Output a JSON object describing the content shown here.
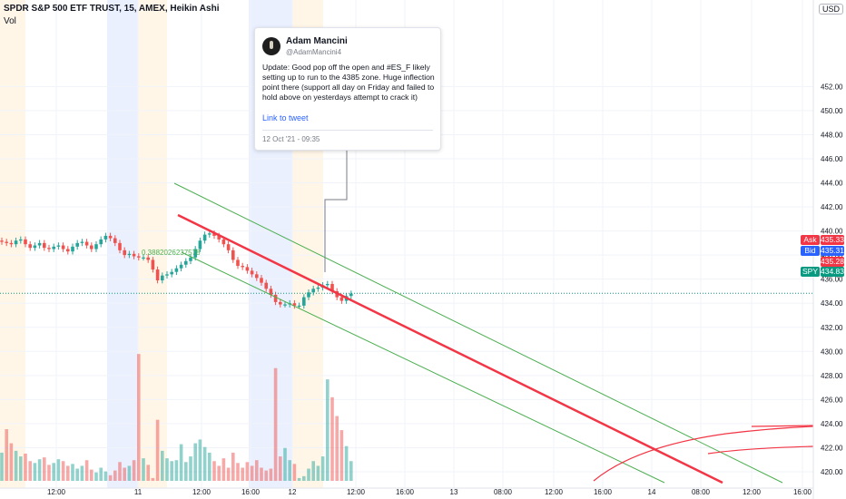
{
  "header": {
    "title": "SPDR S&P 500 ETF TRUST, 15, AMEX, Heikin Ashi",
    "volume_label": "Vol",
    "currency": "USD"
  },
  "tweet": {
    "author": "Adam Mancini",
    "handle": "@AdamMancini4",
    "text": "Update: Good pop off the open and #ES_F likely setting up to run to the 4385 zone. Huge inflection point there (support all day on Friday and failed to hold above on yesterdays attempt to crack it)",
    "link_label": "Link to tweet",
    "date": "12 Oct '21 - 09:35"
  },
  "price_labels": {
    "ask_label": "Ask",
    "ask_value": "435.33",
    "bid_label": "Bid",
    "bid_value": "435.31",
    "last_value": "435.28",
    "symbol_label": "SPY",
    "symbol_value": "434.83"
  },
  "colors": {
    "up": "#26a69a",
    "down": "#ef5350",
    "trend": "#f23645",
    "channel": "#4caf50",
    "premarket": "#fff3e0",
    "afterhours": "#e3ebfd",
    "ask": "#f23645",
    "bid": "#2962ff",
    "spy": "#089981"
  },
  "chart_data": {
    "type": "candlestick",
    "title": "SPDR S&P 500 ETF TRUST, 15, AMEX, Heikin Ashi",
    "y_axis": {
      "min": 419,
      "max": 453,
      "ticks": [
        420,
        422,
        424,
        426,
        428,
        430,
        432,
        434,
        436,
        438,
        440,
        442,
        444,
        446,
        448,
        450,
        452
      ]
    },
    "x_tick_labels": [
      "12:00",
      "11",
      "12:00",
      "16:00",
      "12",
      "12:00",
      "16:00",
      "13",
      "08:00",
      "12:00",
      "16:00",
      "14",
      "08:00",
      "12:00",
      "16:00"
    ],
    "close_series": [
      439.1,
      439.0,
      438.9,
      439.2,
      439.3,
      438.9,
      438.6,
      438.8,
      439.0,
      438.6,
      438.5,
      438.7,
      438.8,
      438.5,
      438.3,
      438.7,
      439.0,
      439.1,
      438.8,
      438.5,
      438.9,
      439.3,
      439.6,
      439.4,
      439.0,
      438.4,
      438.0,
      438.1,
      437.9,
      437.8,
      437.8,
      437.6,
      436.8,
      435.9,
      436.3,
      436.4,
      436.6,
      436.9,
      437.2,
      437.5,
      437.8,
      438.5,
      439.2,
      439.7,
      439.8,
      439.6,
      439.3,
      438.9,
      438.4,
      437.6,
      437.1,
      437.0,
      436.7,
      436.4,
      436.1,
      435.7,
      435.2,
      434.7,
      434.1,
      433.9,
      433.9,
      434.0,
      433.8,
      433.8,
      434.5,
      434.9,
      435.2,
      435.3,
      435.5,
      435.6,
      435.0,
      434.5,
      434.2,
      434.6,
      434.8
    ],
    "volume_series": [
      3.0,
      5.5,
      4.0,
      3.2,
      2.6,
      2.9,
      2.1,
      1.9,
      2.3,
      2.5,
      1.7,
      1.9,
      2.3,
      2.1,
      1.6,
      1.8,
      1.3,
      1.6,
      2.2,
      1.2,
      0.9,
      1.4,
      1.0,
      0.6,
      1.1,
      2.0,
      1.4,
      1.6,
      2.2,
      13.5,
      2.4,
      1.7,
      0.3,
      6.5,
      3.2,
      2.4,
      2.1,
      2.2,
      3.9,
      2.0,
      2.6,
      4.0,
      4.4,
      3.6,
      3.0,
      2.1,
      1.6,
      2.4,
      1.4,
      3.0,
      1.9,
      1.4,
      2.0,
      1.6,
      2.2,
      1.4,
      1.1,
      1.3,
      12.0,
      2.6,
      3.5,
      2.2,
      1.8,
      0.3,
      0.5,
      1.3,
      2.1,
      1.6,
      2.6,
      10.8,
      8.9,
      6.9,
      5.4,
      3.7,
      2.1
    ],
    "annotations": [
      {
        "type": "line",
        "name": "trend line",
        "from": [
          0.0,
          439.0
        ],
        "to": [
          1.0,
          419.0
        ]
      },
      {
        "type": "line",
        "name": "channel upper",
        "from": [
          0.0,
          441.0
        ],
        "to": [
          1.0,
          419.0
        ]
      },
      {
        "type": "line",
        "name": "channel lower",
        "from": [
          0.0,
          436.0
        ],
        "to": [
          1.0,
          419.0
        ]
      }
    ],
    "channel_label": "0.3882026237578",
    "last_price": 434.83,
    "grid": true
  }
}
